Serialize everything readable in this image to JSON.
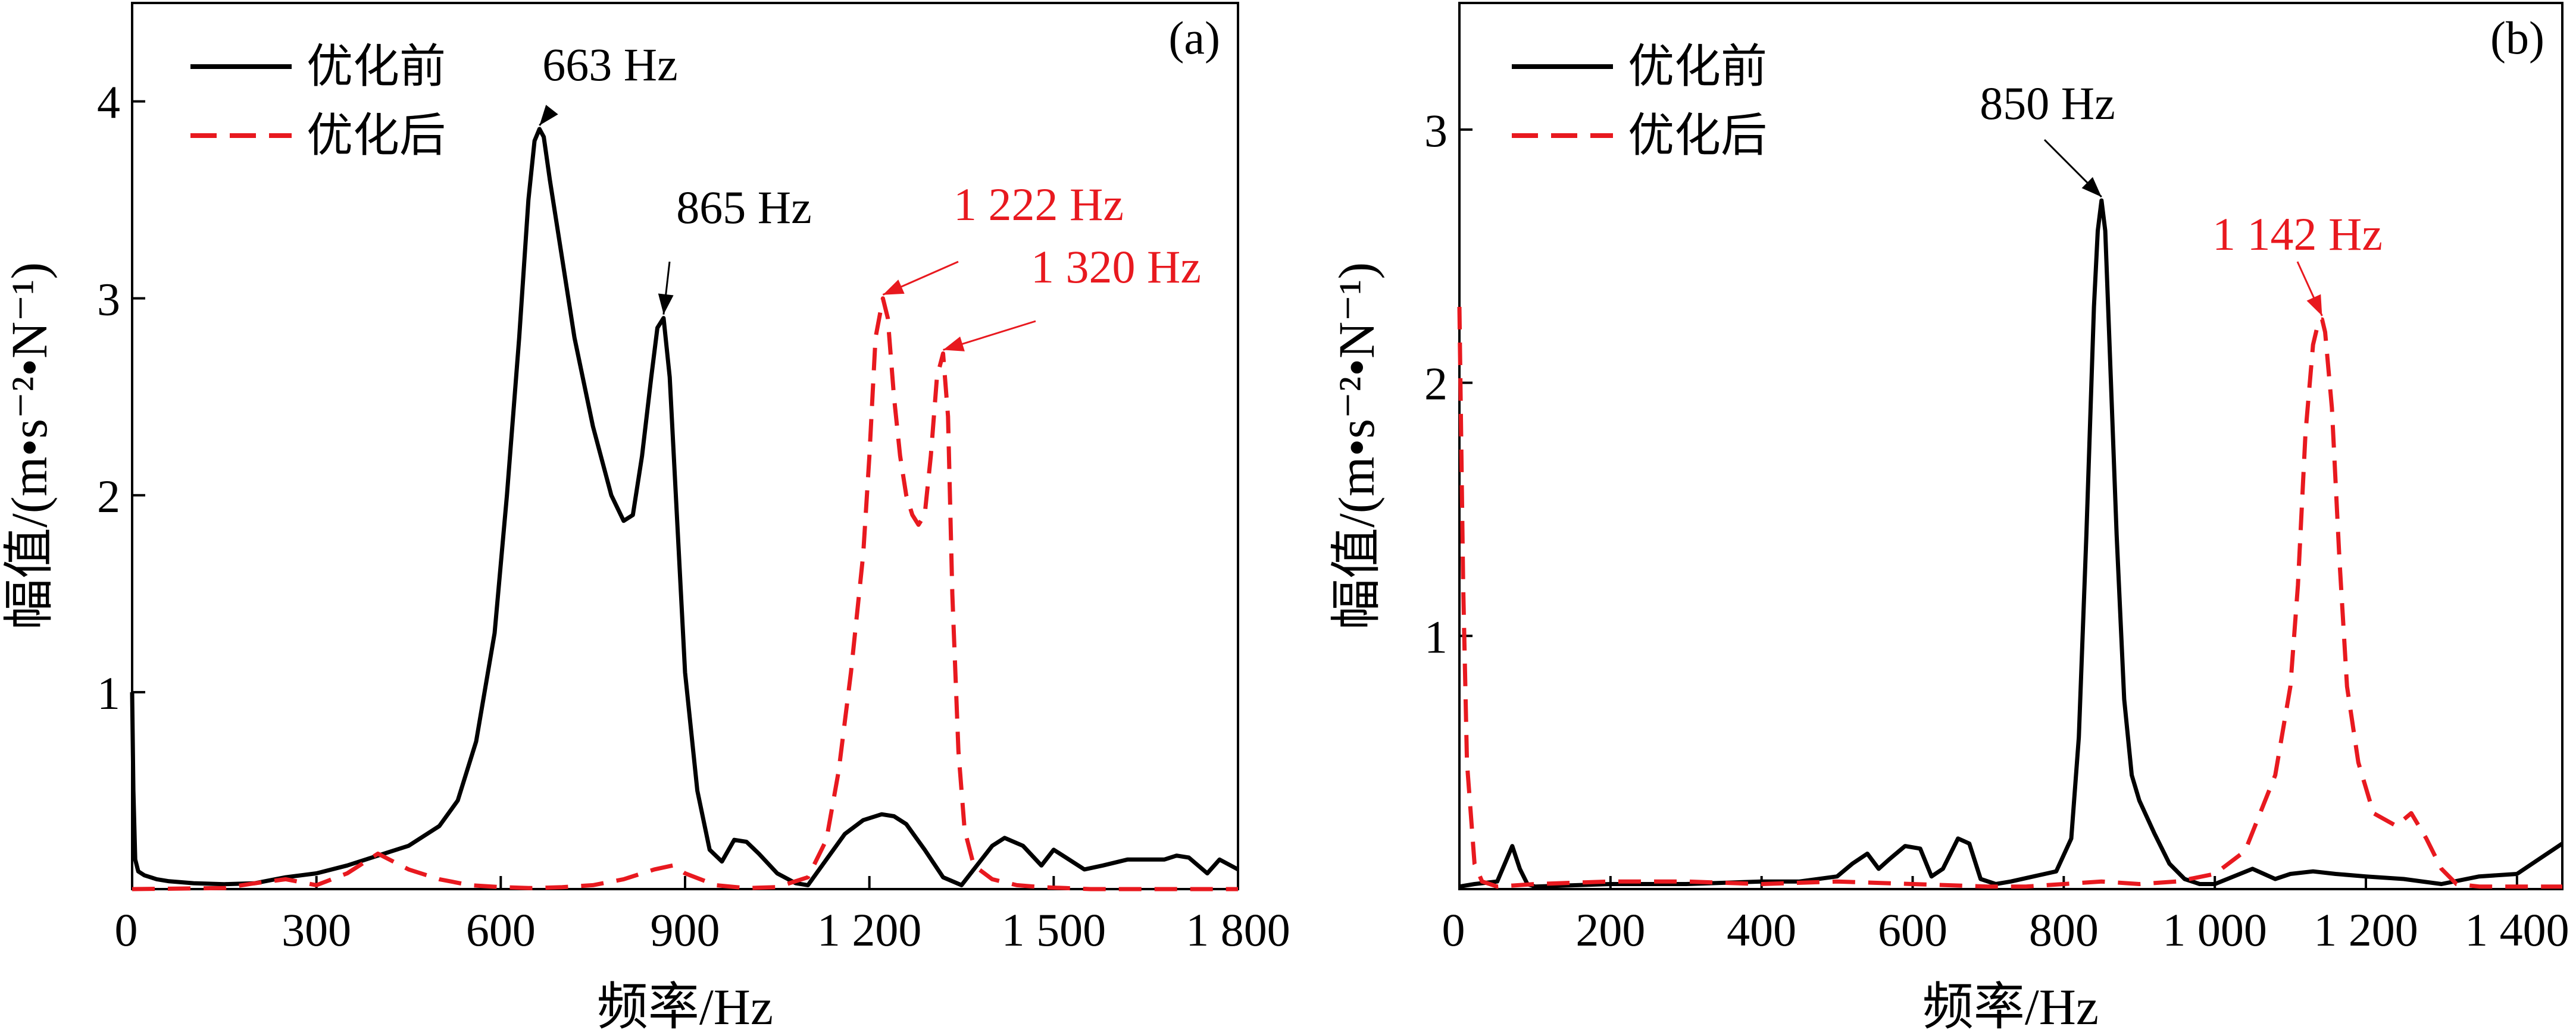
{
  "chart_data": [
    {
      "panel_label": "(a)",
      "type": "line",
      "title": "",
      "xlabel": "频率/Hz",
      "ylabel": "幅值/(m•s⁻²•N⁻¹)",
      "xlim": [
        0,
        1800
      ],
      "ylim": [
        0,
        4.5
      ],
      "xticks": [
        0,
        300,
        600,
        900,
        1200,
        1500,
        1800
      ],
      "xtick_labels": [
        "0",
        "300",
        "600",
        "900",
        "1 200",
        "1 500",
        "1 800"
      ],
      "yticks": [
        1,
        2,
        3,
        4
      ],
      "ytick_labels": [
        "1",
        "2",
        "3",
        "4"
      ],
      "legend_position": "top-left",
      "series": [
        {
          "name": "优化前",
          "color": "#000000",
          "style": "solid",
          "x": [
            0,
            2,
            5,
            10,
            20,
            40,
            60,
            100,
            150,
            200,
            250,
            300,
            350,
            400,
            450,
            500,
            530,
            560,
            590,
            610,
            630,
            645,
            655,
            663,
            670,
            680,
            700,
            720,
            750,
            780,
            800,
            815,
            830,
            845,
            855,
            865,
            875,
            885,
            900,
            920,
            940,
            960,
            980,
            1000,
            1020,
            1050,
            1080,
            1100,
            1130,
            1160,
            1190,
            1220,
            1240,
            1260,
            1290,
            1320,
            1350,
            1370,
            1400,
            1420,
            1450,
            1480,
            1500,
            1520,
            1550,
            1580,
            1620,
            1650,
            1680,
            1700,
            1720,
            1750,
            1770,
            1800
          ],
          "values": [
            1.0,
            0.5,
            0.15,
            0.09,
            0.07,
            0.05,
            0.04,
            0.03,
            0.025,
            0.03,
            0.06,
            0.08,
            0.12,
            0.17,
            0.22,
            0.32,
            0.45,
            0.75,
            1.3,
            2.0,
            2.8,
            3.5,
            3.8,
            3.86,
            3.82,
            3.6,
            3.2,
            2.8,
            2.35,
            2.0,
            1.87,
            1.9,
            2.2,
            2.6,
            2.85,
            2.9,
            2.6,
            2.0,
            1.1,
            0.5,
            0.2,
            0.14,
            0.25,
            0.24,
            0.18,
            0.08,
            0.03,
            0.02,
            0.15,
            0.28,
            0.35,
            0.38,
            0.37,
            0.33,
            0.2,
            0.06,
            0.02,
            0.1,
            0.22,
            0.26,
            0.22,
            0.12,
            0.2,
            0.16,
            0.1,
            0.12,
            0.15,
            0.15,
            0.15,
            0.17,
            0.16,
            0.08,
            0.15,
            0.1
          ]
        },
        {
          "name": "优化后",
          "color": "#e8191f",
          "style": "dashed",
          "x": [
            0,
            150,
            200,
            250,
            300,
            350,
            400,
            450,
            500,
            550,
            600,
            650,
            700,
            750,
            800,
            850,
            880,
            900,
            950,
            1000,
            1050,
            1100,
            1130,
            1150,
            1170,
            1190,
            1200,
            1210,
            1222,
            1230,
            1240,
            1250,
            1260,
            1270,
            1280,
            1290,
            1300,
            1310,
            1320,
            1328,
            1335,
            1345,
            1355,
            1370,
            1400,
            1440,
            1480,
            1520,
            1560,
            1600,
            1650,
            1700,
            1750,
            1800
          ],
          "values": [
            0.0,
            0.005,
            0.03,
            0.05,
            0.02,
            0.08,
            0.18,
            0.1,
            0.05,
            0.02,
            0.01,
            0.005,
            0.01,
            0.02,
            0.05,
            0.1,
            0.12,
            0.08,
            0.02,
            0.005,
            0.01,
            0.06,
            0.25,
            0.6,
            1.1,
            1.7,
            2.2,
            2.8,
            3.0,
            2.9,
            2.5,
            2.2,
            2.0,
            1.9,
            1.85,
            1.9,
            2.2,
            2.6,
            2.72,
            2.4,
            1.5,
            0.7,
            0.3,
            0.12,
            0.05,
            0.02,
            0.01,
            0.005,
            0.0,
            0.0,
            0.0,
            0.0,
            0.0,
            0.0
          ]
        }
      ],
      "annotations": [
        {
          "text": "663 Hz",
          "x": 663,
          "y": 3.86,
          "color": "#000000"
        },
        {
          "text": "865 Hz",
          "x": 865,
          "y": 2.9,
          "color": "#000000"
        },
        {
          "text": "1 222 Hz",
          "x": 1222,
          "y": 3.0,
          "color": "#e8191f"
        },
        {
          "text": "1 320 Hz",
          "x": 1320,
          "y": 2.72,
          "color": "#e8191f"
        }
      ]
    },
    {
      "panel_label": "(b)",
      "type": "line",
      "title": "",
      "xlabel": "频率/Hz",
      "ylabel": "幅值/(m•s⁻²•N⁻¹)",
      "xlim": [
        0,
        1460
      ],
      "ylim": [
        0,
        3.5
      ],
      "xticks": [
        0,
        200,
        400,
        600,
        800,
        1000,
        1200,
        1400
      ],
      "xtick_labels": [
        "0",
        "200",
        "400",
        "600",
        "800",
        "1 000",
        "1 200",
        "1 400"
      ],
      "yticks": [
        1,
        2,
        3
      ],
      "ytick_labels": [
        "1",
        "2",
        "3"
      ],
      "legend_position": "top-left",
      "series": [
        {
          "name": "优化前",
          "color": "#000000",
          "style": "solid",
          "x": [
            0,
            20,
            50,
            60,
            70,
            80,
            90,
            100,
            200,
            300,
            400,
            450,
            500,
            520,
            540,
            555,
            570,
            590,
            610,
            625,
            640,
            660,
            675,
            690,
            710,
            730,
            760,
            790,
            810,
            820,
            830,
            840,
            845,
            850,
            855,
            860,
            870,
            880,
            890,
            900,
            920,
            940,
            960,
            980,
            1000,
            1050,
            1080,
            1100,
            1130,
            1160,
            1200,
            1250,
            1300,
            1350,
            1400,
            1430,
            1460
          ],
          "values": [
            0.01,
            0.02,
            0.03,
            0.1,
            0.17,
            0.08,
            0.02,
            0.01,
            0.02,
            0.02,
            0.03,
            0.03,
            0.05,
            0.1,
            0.14,
            0.08,
            0.12,
            0.17,
            0.16,
            0.05,
            0.08,
            0.2,
            0.18,
            0.04,
            0.02,
            0.03,
            0.05,
            0.07,
            0.2,
            0.6,
            1.4,
            2.3,
            2.6,
            2.72,
            2.6,
            2.2,
            1.4,
            0.75,
            0.45,
            0.35,
            0.22,
            0.1,
            0.04,
            0.02,
            0.02,
            0.08,
            0.04,
            0.06,
            0.07,
            0.06,
            0.05,
            0.04,
            0.02,
            0.05,
            0.06,
            0.12,
            0.18
          ]
        },
        {
          "name": "优化后",
          "color": "#e8191f",
          "style": "dashed",
          "x": [
            0,
            5,
            10,
            20,
            30,
            50,
            100,
            200,
            300,
            400,
            500,
            600,
            700,
            750,
            800,
            850,
            900,
            950,
            1000,
            1040,
            1060,
            1080,
            1100,
            1110,
            1120,
            1130,
            1138,
            1142,
            1146,
            1155,
            1165,
            1175,
            1190,
            1210,
            1240,
            1260,
            1280,
            1300,
            1320,
            1350,
            1400,
            1460
          ],
          "values": [
            2.3,
            1.2,
            0.5,
            0.1,
            0.03,
            0.01,
            0.02,
            0.03,
            0.03,
            0.02,
            0.03,
            0.02,
            0.01,
            0.01,
            0.02,
            0.03,
            0.02,
            0.03,
            0.06,
            0.15,
            0.3,
            0.45,
            0.8,
            1.2,
            1.8,
            2.15,
            2.25,
            2.25,
            2.2,
            1.9,
            1.3,
            0.8,
            0.5,
            0.3,
            0.25,
            0.3,
            0.2,
            0.08,
            0.02,
            0.01,
            0.01,
            0.01
          ]
        }
      ],
      "annotations": [
        {
          "text": "850 Hz",
          "x": 850,
          "y": 2.72,
          "color": "#000000"
        },
        {
          "text": "1 142 Hz",
          "x": 1142,
          "y": 2.25,
          "color": "#e8191f"
        }
      ]
    }
  ]
}
